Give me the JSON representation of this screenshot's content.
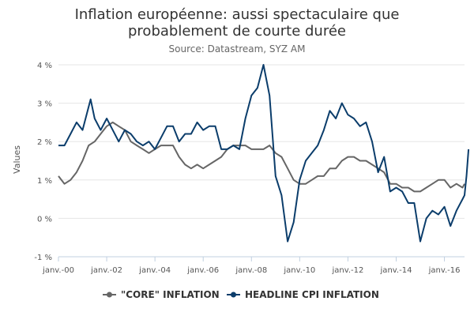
{
  "chart_data": {
    "type": "line",
    "title_line1": "Inflation européenne: aussi spectaculaire que",
    "title_line2": "probablement de courte durée",
    "subtitle": "Source: Datastream, SYZ AM",
    "ylabel": "Values",
    "xlabel": "",
    "ylim": [
      -1,
      4
    ],
    "xlim": [
      "2000-01",
      "2016-11"
    ],
    "y_ticks": [
      -1,
      0,
      1,
      2,
      3,
      4
    ],
    "y_tick_labels": [
      "-1 %",
      "0 %",
      "1 %",
      "2 %",
      "3 %",
      "4 %"
    ],
    "x_ticks": [
      "2000-01",
      "2002-01",
      "2004-01",
      "2006-01",
      "2008-01",
      "2010-01",
      "2012-01",
      "2014-01",
      "2016-01"
    ],
    "x_tick_labels": [
      "janv.-00",
      "janv.-02",
      "janv.-04",
      "janv.-06",
      "janv.-08",
      "janv.-10",
      "janv.-12",
      "janv.-14",
      "janv.-16"
    ],
    "grid": "horizontal",
    "legend_position": "bottom",
    "series": [
      {
        "name": "\"CORE\" INFLATION",
        "color": "#666666",
        "points": [
          [
            "2000-01",
            1.1
          ],
          [
            "2000-04",
            0.9
          ],
          [
            "2000-07",
            1.0
          ],
          [
            "2000-10",
            1.2
          ],
          [
            "2001-01",
            1.5
          ],
          [
            "2001-04",
            1.9
          ],
          [
            "2001-07",
            2.0
          ],
          [
            "2001-10",
            2.2
          ],
          [
            "2002-01",
            2.4
          ],
          [
            "2002-04",
            2.5
          ],
          [
            "2002-07",
            2.4
          ],
          [
            "2002-10",
            2.3
          ],
          [
            "2003-01",
            2.0
          ],
          [
            "2003-04",
            1.9
          ],
          [
            "2003-07",
            1.8
          ],
          [
            "2003-10",
            1.7
          ],
          [
            "2004-01",
            1.8
          ],
          [
            "2004-04",
            1.9
          ],
          [
            "2004-07",
            1.9
          ],
          [
            "2004-10",
            1.9
          ],
          [
            "2005-01",
            1.6
          ],
          [
            "2005-04",
            1.4
          ],
          [
            "2005-07",
            1.3
          ],
          [
            "2005-10",
            1.4
          ],
          [
            "2006-01",
            1.3
          ],
          [
            "2006-04",
            1.4
          ],
          [
            "2006-07",
            1.5
          ],
          [
            "2006-10",
            1.6
          ],
          [
            "2007-01",
            1.8
          ],
          [
            "2007-04",
            1.9
          ],
          [
            "2007-07",
            1.9
          ],
          [
            "2007-10",
            1.9
          ],
          [
            "2008-01",
            1.8
          ],
          [
            "2008-04",
            1.8
          ],
          [
            "2008-07",
            1.8
          ],
          [
            "2008-10",
            1.9
          ],
          [
            "2009-01",
            1.7
          ],
          [
            "2009-04",
            1.6
          ],
          [
            "2009-07",
            1.3
          ],
          [
            "2009-10",
            1.0
          ],
          [
            "2010-01",
            0.9
          ],
          [
            "2010-04",
            0.9
          ],
          [
            "2010-07",
            1.0
          ],
          [
            "2010-10",
            1.1
          ],
          [
            "2011-01",
            1.1
          ],
          [
            "2011-04",
            1.3
          ],
          [
            "2011-07",
            1.3
          ],
          [
            "2011-10",
            1.5
          ],
          [
            "2012-01",
            1.6
          ],
          [
            "2012-04",
            1.6
          ],
          [
            "2012-07",
            1.5
          ],
          [
            "2012-10",
            1.5
          ],
          [
            "2013-01",
            1.4
          ],
          [
            "2013-04",
            1.3
          ],
          [
            "2013-07",
            1.2
          ],
          [
            "2013-10",
            0.9
          ],
          [
            "2014-01",
            0.9
          ],
          [
            "2014-04",
            0.8
          ],
          [
            "2014-07",
            0.8
          ],
          [
            "2014-10",
            0.7
          ],
          [
            "2015-01",
            0.7
          ],
          [
            "2015-04",
            0.8
          ],
          [
            "2015-07",
            0.9
          ],
          [
            "2015-10",
            1.0
          ],
          [
            "2016-01",
            1.0
          ],
          [
            "2016-04",
            0.8
          ],
          [
            "2016-07",
            0.9
          ],
          [
            "2016-10",
            0.8
          ],
          [
            "2016-11",
            0.9
          ]
        ]
      },
      {
        "name": "HEADLINE CPI INFLATION",
        "color": "#0b3d6b",
        "points": [
          [
            "2000-01",
            1.9
          ],
          [
            "2000-04",
            1.9
          ],
          [
            "2000-07",
            2.2
          ],
          [
            "2000-10",
            2.5
          ],
          [
            "2001-01",
            2.3
          ],
          [
            "2001-05",
            3.1
          ],
          [
            "2001-07",
            2.6
          ],
          [
            "2001-10",
            2.3
          ],
          [
            "2002-01",
            2.6
          ],
          [
            "2002-04",
            2.3
          ],
          [
            "2002-07",
            2.0
          ],
          [
            "2002-10",
            2.3
          ],
          [
            "2003-01",
            2.2
          ],
          [
            "2003-04",
            2.0
          ],
          [
            "2003-07",
            1.9
          ],
          [
            "2003-10",
            2.0
          ],
          [
            "2004-01",
            1.8
          ],
          [
            "2004-04",
            2.1
          ],
          [
            "2004-07",
            2.4
          ],
          [
            "2004-10",
            2.4
          ],
          [
            "2005-01",
            2.0
          ],
          [
            "2005-04",
            2.2
          ],
          [
            "2005-07",
            2.2
          ],
          [
            "2005-10",
            2.5
          ],
          [
            "2006-01",
            2.3
          ],
          [
            "2006-04",
            2.4
          ],
          [
            "2006-07",
            2.4
          ],
          [
            "2006-10",
            1.8
          ],
          [
            "2007-01",
            1.8
          ],
          [
            "2007-04",
            1.9
          ],
          [
            "2007-07",
            1.8
          ],
          [
            "2007-10",
            2.6
          ],
          [
            "2008-01",
            3.2
          ],
          [
            "2008-04",
            3.4
          ],
          [
            "2008-07",
            4.0
          ],
          [
            "2008-10",
            3.2
          ],
          [
            "2009-01",
            1.1
          ],
          [
            "2009-04",
            0.6
          ],
          [
            "2009-07",
            -0.6
          ],
          [
            "2009-10",
            -0.1
          ],
          [
            "2010-01",
            1.0
          ],
          [
            "2010-04",
            1.5
          ],
          [
            "2010-07",
            1.7
          ],
          [
            "2010-10",
            1.9
          ],
          [
            "2011-01",
            2.3
          ],
          [
            "2011-04",
            2.8
          ],
          [
            "2011-07",
            2.6
          ],
          [
            "2011-10",
            3.0
          ],
          [
            "2012-01",
            2.7
          ],
          [
            "2012-04",
            2.6
          ],
          [
            "2012-07",
            2.4
          ],
          [
            "2012-10",
            2.5
          ],
          [
            "2013-01",
            2.0
          ],
          [
            "2013-04",
            1.2
          ],
          [
            "2013-07",
            1.6
          ],
          [
            "2013-10",
            0.7
          ],
          [
            "2014-01",
            0.8
          ],
          [
            "2014-04",
            0.7
          ],
          [
            "2014-07",
            0.4
          ],
          [
            "2014-10",
            0.4
          ],
          [
            "2015-01",
            -0.6
          ],
          [
            "2015-04",
            0.0
          ],
          [
            "2015-07",
            0.2
          ],
          [
            "2015-10",
            0.1
          ],
          [
            "2016-01",
            0.3
          ],
          [
            "2016-04",
            -0.2
          ],
          [
            "2016-07",
            0.2
          ],
          [
            "2016-10",
            0.5
          ],
          [
            "2016-11",
            0.6
          ],
          [
            "2016-12",
            1.1
          ],
          [
            "2017-01",
            1.8
          ]
        ]
      }
    ]
  }
}
